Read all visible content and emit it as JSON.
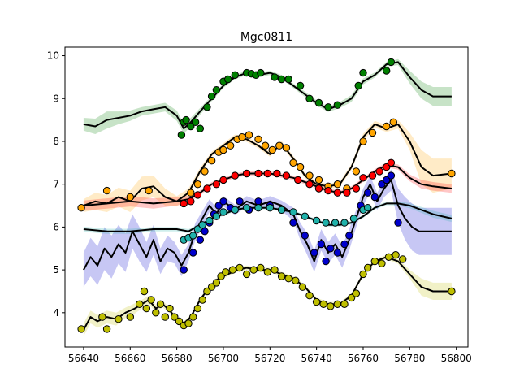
{
  "chart_data": {
    "type": "scatter",
    "title": "Mgc0811",
    "xlabel": "",
    "ylabel": "",
    "xlim": [
      56632,
      56805
    ],
    "ylim": [
      3.2,
      10.2
    ],
    "grid": false,
    "legend": "none",
    "x_ticks": [
      56640,
      56660,
      56680,
      56700,
      56720,
      56740,
      56760,
      56780,
      56800
    ],
    "y_ticks": [
      4,
      5,
      6,
      7,
      8,
      9,
      10
    ],
    "series": [
      {
        "color": "#008000",
        "model_x": [
          56640,
          56645,
          56650,
          56655,
          56660,
          56665,
          56670,
          56675,
          56680,
          56683,
          56686,
          56690,
          56695,
          56700,
          56705,
          56710,
          56715,
          56720,
          56725,
          56730,
          56735,
          56740,
          56745,
          56750,
          56755,
          56760,
          56765,
          56770,
          56775,
          56780,
          56785,
          56790,
          56798
        ],
        "model_y": [
          8.4,
          8.35,
          8.5,
          8.55,
          8.6,
          8.7,
          8.75,
          8.8,
          8.6,
          8.3,
          8.45,
          8.7,
          9.0,
          9.3,
          9.5,
          9.6,
          9.55,
          9.6,
          9.5,
          9.3,
          9.1,
          8.9,
          8.75,
          8.85,
          9.0,
          9.4,
          9.55,
          9.8,
          9.85,
          9.5,
          9.2,
          9.05,
          9.05
        ],
        "band": [
          0.15,
          0.18,
          0.2,
          0.15,
          0.12,
          0.1,
          0.1,
          0.1,
          0.12,
          0.12,
          0.1,
          0.08,
          0.06,
          0.05,
          0.05,
          0.05,
          0.05,
          0.05,
          0.05,
          0.05,
          0.06,
          0.06,
          0.06,
          0.07,
          0.08,
          0.07,
          0.06,
          0.05,
          0.07,
          0.15,
          0.2,
          0.22,
          0.22
        ],
        "points_x": [
          56682,
          56683,
          56684,
          56686,
          56688,
          56690,
          56693,
          56695,
          56697,
          56700,
          56702,
          56705,
          56710,
          56712,
          56714,
          56716,
          56722,
          56725,
          56728,
          56733,
          56737,
          56741,
          56745,
          56749,
          56758,
          56760,
          56770,
          56772
        ],
        "points_y": [
          8.15,
          8.45,
          8.5,
          8.35,
          8.45,
          8.3,
          8.8,
          9.05,
          9.2,
          9.4,
          9.45,
          9.55,
          9.6,
          9.58,
          9.55,
          9.6,
          9.5,
          9.45,
          9.45,
          9.3,
          9.0,
          8.9,
          8.8,
          8.85,
          9.3,
          9.6,
          9.65,
          9.85
        ]
      },
      {
        "color": "#ffa500",
        "model_x": [
          56640,
          56645,
          56650,
          56655,
          56660,
          56665,
          56670,
          56675,
          56680,
          56685,
          56690,
          56695,
          56700,
          56705,
          56710,
          56715,
          56720,
          56725,
          56730,
          56735,
          56740,
          56745,
          56750,
          56755,
          56760,
          56765,
          56770,
          56775,
          56780,
          56785,
          56790,
          56798
        ],
        "model_y": [
          6.5,
          6.6,
          6.55,
          6.7,
          6.6,
          6.9,
          6.95,
          6.7,
          6.6,
          6.8,
          7.3,
          7.7,
          7.9,
          8.1,
          8.05,
          7.9,
          7.7,
          7.95,
          7.6,
          7.2,
          7.0,
          6.95,
          7.0,
          7.4,
          8.1,
          8.4,
          8.3,
          8.4,
          8.0,
          7.4,
          7.2,
          7.25
        ],
        "band": [
          0.15,
          0.2,
          0.2,
          0.22,
          0.25,
          0.28,
          0.25,
          0.2,
          0.12,
          0.1,
          0.08,
          0.06,
          0.06,
          0.06,
          0.06,
          0.06,
          0.06,
          0.06,
          0.06,
          0.06,
          0.06,
          0.06,
          0.06,
          0.07,
          0.08,
          0.08,
          0.08,
          0.1,
          0.2,
          0.4,
          0.4,
          0.35
        ],
        "points_x": [
          56639,
          56650,
          56660,
          56668,
          56683,
          56686,
          56689,
          56692,
          56695,
          56698,
          56700,
          56703,
          56706,
          56708,
          56711,
          56715,
          56718,
          56721,
          56724,
          56727,
          56730,
          56733,
          56737,
          56741,
          56745,
          56749,
          56753,
          56757,
          56760,
          56764,
          56770,
          56773,
          56798
        ],
        "points_y": [
          6.45,
          6.85,
          6.7,
          6.85,
          6.55,
          6.8,
          7.0,
          7.3,
          7.55,
          7.75,
          7.8,
          7.9,
          8.05,
          8.1,
          8.15,
          8.05,
          7.9,
          7.8,
          7.9,
          7.85,
          7.5,
          7.4,
          7.2,
          7.1,
          6.95,
          7.0,
          6.9,
          7.3,
          8.0,
          8.2,
          8.35,
          8.45,
          7.25
        ]
      },
      {
        "color": "#ff0000",
        "model_x": [
          56640,
          56650,
          56660,
          56670,
          56680,
          56685,
          56690,
          56695,
          56700,
          56705,
          56710,
          56715,
          56720,
          56725,
          56730,
          56735,
          56740,
          56745,
          56750,
          56755,
          56760,
          56765,
          56770,
          56775,
          56780,
          56785,
          56790,
          56798
        ],
        "model_y": [
          6.5,
          6.55,
          6.6,
          6.55,
          6.6,
          6.65,
          6.8,
          7.0,
          7.1,
          7.2,
          7.25,
          7.25,
          7.25,
          7.2,
          7.15,
          7.05,
          6.95,
          6.85,
          6.8,
          6.9,
          7.1,
          7.3,
          7.45,
          7.4,
          7.15,
          7.0,
          6.95,
          6.9
        ],
        "band": [
          0.12,
          0.12,
          0.12,
          0.12,
          0.1,
          0.08,
          0.06,
          0.05,
          0.05,
          0.05,
          0.05,
          0.05,
          0.05,
          0.05,
          0.05,
          0.05,
          0.05,
          0.05,
          0.05,
          0.05,
          0.05,
          0.05,
          0.06,
          0.06,
          0.08,
          0.1,
          0.1,
          0.1
        ],
        "points_x": [
          56683,
          56686,
          56689,
          56693,
          56697,
          56700,
          56705,
          56710,
          56715,
          56719,
          56723,
          56727,
          56732,
          56737,
          56741,
          56745,
          56749,
          56753,
          56757,
          56760,
          56764,
          56767,
          56770,
          56772
        ],
        "points_y": [
          6.55,
          6.6,
          6.75,
          6.9,
          7.0,
          7.1,
          7.2,
          7.25,
          7.25,
          7.25,
          7.25,
          7.2,
          7.1,
          7.0,
          6.9,
          6.85,
          6.8,
          6.8,
          6.9,
          7.15,
          7.2,
          7.3,
          7.4,
          7.5
        ]
      },
      {
        "color": "#0000cd",
        "model_x": [
          56640,
          56643,
          56646,
          56649,
          56652,
          56655,
          56658,
          56661,
          56664,
          56667,
          56670,
          56673,
          56676,
          56679,
          56682,
          56685,
          56688,
          56691,
          56694,
          56697,
          56700,
          56705,
          56710,
          56715,
          56720,
          56725,
          56730,
          56733,
          56736,
          56739,
          56742,
          56745,
          56748,
          56751,
          56754,
          56757,
          56760,
          56763,
          56766,
          56769,
          56772,
          56775,
          56778,
          56781,
          56784,
          56790,
          56798
        ],
        "model_y": [
          5.0,
          5.3,
          5.1,
          5.5,
          5.3,
          5.6,
          5.4,
          5.9,
          5.6,
          5.3,
          5.7,
          5.2,
          5.5,
          5.4,
          5.1,
          5.4,
          5.9,
          6.2,
          6.5,
          6.3,
          6.6,
          6.4,
          6.6,
          6.5,
          6.6,
          6.5,
          6.3,
          5.9,
          5.6,
          5.2,
          5.7,
          5.4,
          5.6,
          5.3,
          5.7,
          6.2,
          6.7,
          7.0,
          6.6,
          6.9,
          7.1,
          6.5,
          6.2,
          6.0,
          5.9,
          5.9,
          5.9
        ],
        "band": [
          0.4,
          0.45,
          0.45,
          0.5,
          0.5,
          0.45,
          0.45,
          0.4,
          0.4,
          0.35,
          0.35,
          0.3,
          0.3,
          0.25,
          0.25,
          0.2,
          0.2,
          0.18,
          0.15,
          0.15,
          0.12,
          0.12,
          0.12,
          0.12,
          0.12,
          0.12,
          0.15,
          0.2,
          0.25,
          0.25,
          0.25,
          0.25,
          0.25,
          0.25,
          0.25,
          0.2,
          0.2,
          0.2,
          0.2,
          0.2,
          0.25,
          0.4,
          0.5,
          0.55,
          0.55,
          0.55,
          0.55
        ],
        "points_x": [
          56683,
          56687,
          56690,
          56692,
          56694,
          56696,
          56698,
          56700,
          56703,
          56707,
          56711,
          56715,
          56720,
          56725,
          56730,
          56735,
          56739,
          56742,
          56744,
          56746,
          56749,
          56752,
          56754,
          56756,
          56759,
          56762,
          56765,
          56768,
          56770,
          56772,
          56775
        ],
        "points_y": [
          5.0,
          5.4,
          5.7,
          5.9,
          6.1,
          6.3,
          6.5,
          6.6,
          6.45,
          6.6,
          6.4,
          6.6,
          6.5,
          6.4,
          6.1,
          5.8,
          5.4,
          5.6,
          5.2,
          5.5,
          5.4,
          5.6,
          5.8,
          6.2,
          6.5,
          6.8,
          6.7,
          7.0,
          7.1,
          7.2,
          6.1
        ]
      },
      {
        "color": "#20b2aa",
        "model_x": [
          56640,
          56650,
          56660,
          56670,
          56680,
          56685,
          56690,
          56695,
          56700,
          56705,
          56710,
          56715,
          56720,
          56725,
          56730,
          56735,
          56740,
          56745,
          56750,
          56755,
          56760,
          56765,
          56770,
          56775,
          56780,
          56785,
          56790,
          56798
        ],
        "model_y": [
          5.95,
          5.9,
          5.9,
          5.95,
          5.95,
          5.9,
          6.05,
          6.2,
          6.3,
          6.4,
          6.45,
          6.45,
          6.45,
          6.4,
          6.35,
          6.25,
          6.15,
          6.05,
          6.05,
          6.1,
          6.25,
          6.45,
          6.55,
          6.55,
          6.5,
          6.4,
          6.3,
          6.2
        ],
        "band": [
          0.06,
          0.06,
          0.06,
          0.05,
          0.05,
          0.05,
          0.04,
          0.04,
          0.04,
          0.04,
          0.04,
          0.04,
          0.04,
          0.04,
          0.04,
          0.04,
          0.04,
          0.04,
          0.04,
          0.04,
          0.04,
          0.04,
          0.04,
          0.05,
          0.06,
          0.07,
          0.08,
          0.08
        ],
        "points_x": [
          56683,
          56685,
          56687,
          56689,
          56691,
          56694,
          56697,
          56700,
          56705,
          56710,
          56715,
          56720,
          56725,
          56730,
          56735,
          56740,
          56744,
          56748,
          56752,
          56756,
          56760,
          56762
        ],
        "points_y": [
          5.7,
          5.75,
          5.8,
          5.95,
          6.05,
          6.15,
          6.25,
          6.35,
          6.4,
          6.45,
          6.45,
          6.45,
          6.4,
          6.35,
          6.25,
          6.15,
          6.1,
          6.1,
          6.1,
          6.2,
          6.4,
          6.45
        ]
      },
      {
        "color": "#bfbf00",
        "model_x": [
          56640,
          56643,
          56646,
          56650,
          56654,
          56658,
          56662,
          56665,
          56668,
          56671,
          56674,
          56677,
          56680,
          56683,
          56686,
          56690,
          56694,
          56698,
          56702,
          56706,
          56710,
          56715,
          56720,
          56725,
          56730,
          56735,
          56740,
          56745,
          56750,
          56755,
          56760,
          56765,
          56770,
          56775,
          56780,
          56785,
          56790,
          56798
        ],
        "model_y": [
          3.6,
          3.9,
          3.8,
          3.9,
          3.85,
          4.0,
          4.1,
          4.2,
          4.3,
          4.1,
          4.2,
          4.05,
          3.85,
          3.75,
          3.9,
          4.3,
          4.6,
          4.8,
          4.9,
          5.0,
          5.05,
          5.0,
          5.0,
          4.9,
          4.8,
          4.6,
          4.3,
          4.2,
          4.2,
          4.4,
          4.9,
          5.2,
          5.3,
          5.2,
          4.9,
          4.6,
          4.5,
          4.5
        ],
        "band": [
          0.15,
          0.15,
          0.15,
          0.15,
          0.15,
          0.12,
          0.12,
          0.1,
          0.1,
          0.08,
          0.08,
          0.06,
          0.06,
          0.05,
          0.05,
          0.05,
          0.05,
          0.05,
          0.05,
          0.05,
          0.05,
          0.05,
          0.05,
          0.05,
          0.05,
          0.05,
          0.05,
          0.05,
          0.05,
          0.05,
          0.05,
          0.05,
          0.05,
          0.06,
          0.1,
          0.2,
          0.2,
          0.2
        ],
        "points_x": [
          56639,
          56648,
          56650,
          56655,
          56660,
          56664,
          56666,
          56667,
          56669,
          56671,
          56673,
          56675,
          56677,
          56679,
          56681,
          56683,
          56685,
          56687,
          56689,
          56691,
          56693,
          56695,
          56697,
          56699,
          56701,
          56704,
          56707,
          56710,
          56713,
          56716,
          56719,
          56722,
          56725,
          56728,
          56731,
          56734,
          56737,
          56740,
          56743,
          56746,
          56749,
          56752,
          56755,
          56757,
          56760,
          56762,
          56765,
          56768,
          56771,
          56774,
          56777,
          56798
        ],
        "points_y": [
          3.62,
          3.9,
          3.62,
          3.85,
          3.9,
          4.2,
          4.5,
          4.1,
          4.3,
          4.0,
          4.2,
          3.9,
          4.1,
          3.9,
          3.8,
          3.7,
          3.75,
          3.9,
          4.1,
          4.3,
          4.5,
          4.6,
          4.7,
          4.85,
          4.95,
          5.0,
          5.05,
          4.9,
          5.0,
          5.05,
          4.95,
          5.0,
          4.85,
          4.8,
          4.75,
          4.6,
          4.4,
          4.25,
          4.2,
          4.15,
          4.2,
          4.2,
          4.35,
          4.45,
          4.9,
          5.05,
          5.2,
          5.15,
          5.3,
          5.35,
          5.25,
          4.5
        ]
      }
    ]
  }
}
